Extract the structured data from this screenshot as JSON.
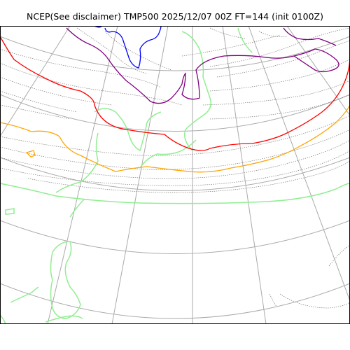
{
  "title": "NCEP(See disclaimer) TMP500 2025/12/07 00Z FT=144 (init 0100Z)",
  "colors": {
    "graticule": "#aaaaaa",
    "isotherm_thin": "#7a7a7a",
    "coastline": "#90ee90",
    "contour_red": "#ff0000",
    "contour_orange": "#ffa500",
    "contour_purple": "#800080",
    "contour_blue": "#0000ff",
    "frame": "#000000"
  }
}
